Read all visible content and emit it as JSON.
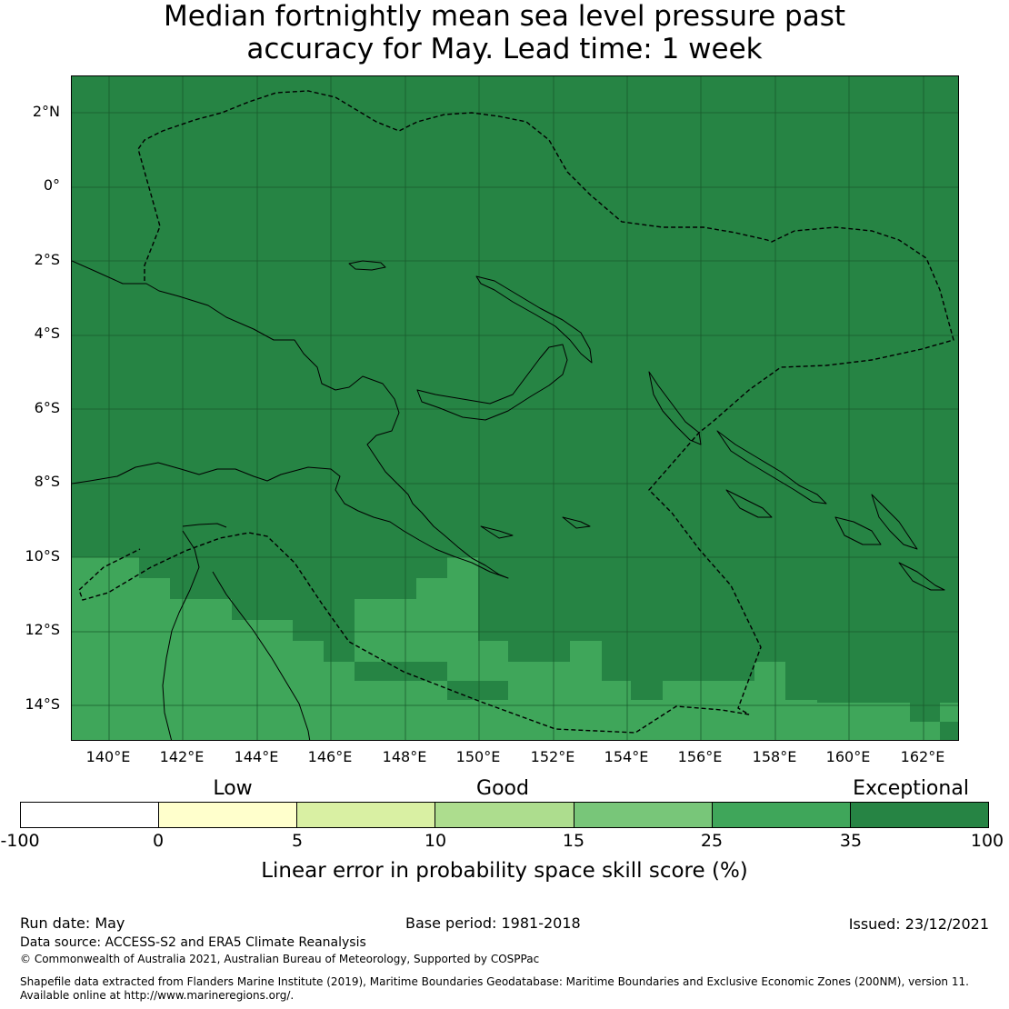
{
  "title": {
    "line1": "Median fortnightly mean sea level pressure past",
    "line2": "accuracy for May. Lead time: 1 week"
  },
  "map": {
    "y_labels": [
      "2°N",
      "0°",
      "2°S",
      "4°S",
      "6°S",
      "8°S",
      "10°S",
      "12°S",
      "14°S"
    ],
    "x_labels": [
      "140°E",
      "142°E",
      "144°E",
      "146°E",
      "148°E",
      "150°E",
      "152°E",
      "154°E",
      "156°E",
      "158°E",
      "160°E",
      "162°E"
    ],
    "colors": {
      "exceptional": "#268444",
      "very_good": "#3fa65a",
      "grid": "#1a5a2c"
    }
  },
  "legend": {
    "categories": [
      "Low",
      "Good",
      "Exceptional"
    ],
    "ticks": [
      "-100",
      "0",
      "5",
      "10",
      "15",
      "25",
      "35",
      "100"
    ],
    "colors": [
      "#ffffff",
      "#ffffcc",
      "#d9f0a3",
      "#addd8e",
      "#78c679",
      "#3fa65a",
      "#268444"
    ],
    "title": "Linear error in probability space skill score (%)"
  },
  "footer": {
    "run_date": "Run date: May",
    "base_period": "Base period: 1981-2018",
    "issued": "Issued: 23/12/2021",
    "data_source": "Data source: ACCESS-S2 and ERA5 Climate Reanalysis",
    "copyright": "© Commonwealth of Australia 2021, Australian Bureau of Meteorology, Supported by COSPPac",
    "shapefile_line1": "Shapefile data extracted from Flanders Marine Institute (2019), Maritime Boundaries Geodatabase: Maritime Boundaries and Exclusive Economic Zones (200NM), version 11.",
    "shapefile_line2": "Available online at http://www.marineregions.org/."
  }
}
